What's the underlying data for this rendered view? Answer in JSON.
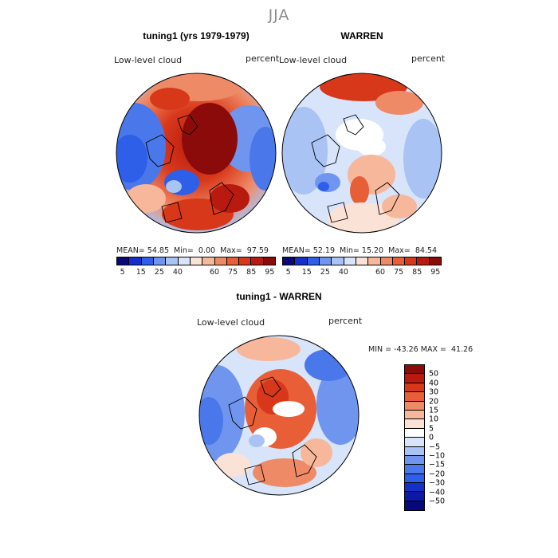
{
  "season": "JJA",
  "panels": [
    {
      "title": "tuning1 (yrs 1979-1979)",
      "variable": "Low-level cloud",
      "units": "percent",
      "stats": {
        "mean_label": "MEAN=",
        "mean": "54.85",
        "min_label": "Min=",
        "min": "0.00",
        "max_label": "Max=",
        "max": "97.59"
      }
    },
    {
      "title": "WARREN",
      "variable": "Low-level cloud",
      "units": "percent",
      "stats": {
        "mean_label": "MEAN=",
        "mean": "52.19",
        "min_label": "Min=",
        "min": "15.20",
        "max_label": "Max=",
        "max": "84.54"
      }
    }
  ],
  "top_colorbar": {
    "ticks": [
      "5",
      "15",
      "25",
      "40",
      "60",
      "75",
      "85",
      "95"
    ],
    "colors": [
      "#08087a",
      "#1530c8",
      "#2d5fe8",
      "#6f95ee",
      "#a9c3f4",
      "#d7e4fa",
      "#fbe2d6",
      "#f7b79b",
      "#ef8a66",
      "#e85e37",
      "#d8381a",
      "#b81a10",
      "#8b0a0a"
    ]
  },
  "difference": {
    "title": "tuning1 - WARREN",
    "variable": "Low-level cloud",
    "units": "percent",
    "minmax": "MIN = -43.26 MAX =  41.26",
    "colorbar": {
      "ticks": [
        "50",
        "40",
        "30",
        "20",
        "15",
        "10",
        "5",
        "0",
        "−5",
        "−10",
        "−15",
        "−20",
        "−30",
        "−40",
        "−50"
      ],
      "colors": [
        "#8b0a0a",
        "#b81a10",
        "#d8381a",
        "#e85e37",
        "#ef8a66",
        "#f7b79b",
        "#fbe2d6",
        "#ffffff",
        "#d7e4fa",
        "#a9c3f4",
        "#6f95ee",
        "#4a78ea",
        "#2d5fe8",
        "#1530c8",
        "#0b1aa6",
        "#08087a"
      ]
    }
  },
  "colors": {
    "season": "#8c8c8c",
    "land_outline": "#000000"
  }
}
